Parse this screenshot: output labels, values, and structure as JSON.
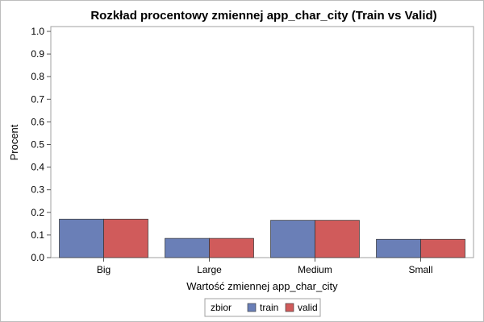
{
  "chart_data": {
    "type": "bar",
    "title": "Rozkład procentowy zmiennej app_char_city (Train vs Valid)",
    "xlabel": "Wartość zmiennej app_char_city",
    "ylabel": "Procent",
    "categories": [
      "Big",
      "Large",
      "Medium",
      "Small"
    ],
    "series": [
      {
        "name": "train",
        "values": [
          0.17,
          0.085,
          0.165,
          0.081
        ],
        "color": "#6a7fb7"
      },
      {
        "name": "valid",
        "values": [
          0.17,
          0.085,
          0.165,
          0.081
        ],
        "color": "#d05b5b"
      }
    ],
    "ylim": [
      0,
      1.0
    ],
    "yticks": [
      "0.0",
      "0.1",
      "0.2",
      "0.3",
      "0.4",
      "0.5",
      "0.6",
      "0.7",
      "0.8",
      "0.9",
      "1.0"
    ],
    "grid": false,
    "legend": {
      "title": "zbior",
      "placement": "bottom-center"
    }
  }
}
